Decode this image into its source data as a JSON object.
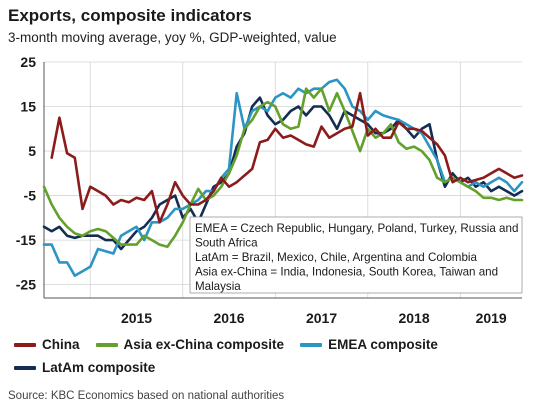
{
  "title": "Exports, composite indicators",
  "subtitle": "3-month moving average, yoy %, GDP-weighted, value",
  "source": "Source: KBC Economics based on national authorities",
  "annotation": [
    "EMEA = Czech Republic, Hungary, Poland, Turkey, Russia and",
    "South Africa",
    "LatAm = Brazil, Mexico, Chile, Argentina and Colombia",
    "Asia ex-China = India, Indonesia, South Korea, Taiwan and",
    "Malaysia"
  ],
  "chart_data": {
    "type": "line",
    "x_start": "2014-07",
    "x_end": "2019-09",
    "x_ticks": [
      "2015",
      "2016",
      "2017",
      "2018",
      "2019"
    ],
    "y_ticks": [
      "25",
      "15",
      "5",
      "-5",
      "-15",
      "-25"
    ],
    "ylim": [
      -28,
      25
    ],
    "grid": true,
    "series": [
      {
        "name": "China",
        "color": "#8c1c1c",
        "x": [
          "2014-08",
          "2014-09",
          "2014-10",
          "2014-11",
          "2014-12",
          "2015-01",
          "2015-02",
          "2015-03",
          "2015-04",
          "2015-05",
          "2015-06",
          "2015-07",
          "2015-08",
          "2015-09",
          "2015-10",
          "2015-11",
          "2015-12",
          "2016-01",
          "2016-02",
          "2016-03",
          "2016-04",
          "2016-05",
          "2016-06",
          "2016-07",
          "2016-08",
          "2016-09",
          "2016-10",
          "2016-11",
          "2016-12",
          "2017-01",
          "2017-02",
          "2017-03",
          "2017-04",
          "2017-05",
          "2017-06",
          "2017-07",
          "2017-08",
          "2017-09",
          "2017-10",
          "2017-11",
          "2017-12",
          "2018-01",
          "2018-02",
          "2018-03",
          "2018-04",
          "2018-05",
          "2018-06",
          "2018-07",
          "2018-08",
          "2018-09",
          "2018-10",
          "2018-11",
          "2018-12",
          "2019-01",
          "2019-02",
          "2019-03",
          "2019-04",
          "2019-05",
          "2019-06",
          "2019-07",
          "2019-08",
          "2019-09"
        ],
        "values": [
          3.5,
          12.5,
          4.5,
          3.5,
          -8,
          -3,
          -4,
          -5,
          -7,
          -6,
          -6.5,
          -5.5,
          -6,
          -4,
          -11,
          -7,
          -2,
          -5,
          -7,
          -7,
          -6,
          -4,
          -1,
          -3,
          -2,
          -0.5,
          1,
          7,
          7.5,
          10,
          8,
          8.5,
          7.5,
          6.5,
          6,
          10.5,
          8,
          9,
          10,
          10.5,
          18,
          8.5,
          10,
          8,
          8,
          11.5,
          10,
          10,
          9.5,
          8,
          6.5,
          4,
          -2,
          -1,
          -2,
          -1.5,
          -1,
          0,
          1,
          0,
          -1,
          -0.5
        ]
      },
      {
        "name": "Asia ex-China composite",
        "color": "#63a02c",
        "x": [
          "2014-07",
          "2014-08",
          "2014-09",
          "2014-10",
          "2014-11",
          "2014-12",
          "2015-01",
          "2015-02",
          "2015-03",
          "2015-04",
          "2015-05",
          "2015-06",
          "2015-07",
          "2015-08",
          "2015-09",
          "2015-10",
          "2015-11",
          "2015-12",
          "2016-01",
          "2016-02",
          "2016-03",
          "2016-04",
          "2016-05",
          "2016-06",
          "2016-07",
          "2016-08",
          "2016-09",
          "2016-10",
          "2016-11",
          "2016-12",
          "2017-01",
          "2017-02",
          "2017-03",
          "2017-04",
          "2017-05",
          "2017-06",
          "2017-07",
          "2017-08",
          "2017-09",
          "2017-10",
          "2017-11",
          "2017-12",
          "2018-01",
          "2018-02",
          "2018-03",
          "2018-04",
          "2018-05",
          "2018-06",
          "2018-07",
          "2018-08",
          "2018-09",
          "2018-10",
          "2018-11",
          "2018-12",
          "2019-01",
          "2019-02",
          "2019-03",
          "2019-04",
          "2019-05",
          "2019-06",
          "2019-07",
          "2019-08",
          "2019-09"
        ],
        "values": [
          -3,
          -7,
          -10,
          -12,
          -13.5,
          -14,
          -13,
          -12.5,
          -13,
          -14.5,
          -16,
          -16,
          -16,
          -14,
          -15,
          -16,
          -16.5,
          -14,
          -11,
          -7,
          -3.5,
          -6,
          -5,
          -3,
          0,
          4,
          10,
          12,
          15,
          16,
          15,
          11,
          10,
          10.5,
          19,
          17,
          19,
          14,
          18,
          14,
          9.5,
          5,
          10,
          8,
          9,
          11,
          7,
          5.5,
          6,
          5,
          3,
          -1,
          -2,
          -1,
          -2,
          -3,
          -4,
          -5.5,
          -5.5,
          -6,
          -5.5,
          -6,
          -6
        ]
      },
      {
        "name": "EMEA composite",
        "color": "#2b95c4",
        "x": [
          "2014-07",
          "2014-08",
          "2014-09",
          "2014-10",
          "2014-11",
          "2014-12",
          "2015-01",
          "2015-02",
          "2015-03",
          "2015-04",
          "2015-05",
          "2015-06",
          "2015-07",
          "2015-08",
          "2015-09",
          "2015-10",
          "2015-11",
          "2015-12",
          "2016-01",
          "2016-02",
          "2016-03",
          "2016-04",
          "2016-05",
          "2016-06",
          "2016-07",
          "2016-08",
          "2016-09",
          "2016-10",
          "2016-11",
          "2016-12",
          "2017-01",
          "2017-02",
          "2017-03",
          "2017-04",
          "2017-05",
          "2017-06",
          "2017-07",
          "2017-08",
          "2017-09",
          "2017-10",
          "2017-11",
          "2017-12",
          "2018-01",
          "2018-02",
          "2018-03",
          "2018-04",
          "2018-05",
          "2018-06",
          "2018-07",
          "2018-08",
          "2018-09",
          "2018-10",
          "2018-11",
          "2018-12",
          "2019-01",
          "2019-02",
          "2019-03",
          "2019-04",
          "2019-05",
          "2019-06",
          "2019-07",
          "2019-08",
          "2019-09"
        ],
        "values": [
          -16,
          -16,
          -20,
          -20,
          -23,
          -22,
          -21,
          -17,
          -17.5,
          -18,
          -14,
          -13,
          -12,
          -15,
          -11,
          -11,
          -10,
          -8,
          -8,
          -7,
          -6,
          -4,
          -4,
          -1,
          1,
          18,
          10,
          14,
          15,
          14,
          17,
          18,
          17,
          19,
          18,
          19,
          19,
          20.5,
          21,
          19,
          15,
          14,
          12,
          14,
          13,
          12.5,
          12,
          11,
          10,
          9,
          6,
          3,
          -2,
          -1,
          -2,
          -3,
          -2,
          -3,
          -2,
          -1,
          -2,
          -4,
          -2
        ]
      },
      {
        "name": "LatAm composite",
        "color": "#142d53",
        "x": [
          "2014-07",
          "2014-08",
          "2014-09",
          "2014-10",
          "2014-11",
          "2014-12",
          "2015-01",
          "2015-02",
          "2015-03",
          "2015-04",
          "2015-05",
          "2015-06",
          "2015-07",
          "2015-08",
          "2015-09",
          "2015-10",
          "2015-11",
          "2015-12",
          "2016-01",
          "2016-02",
          "2016-03",
          "2016-04",
          "2016-05",
          "2016-06",
          "2016-07",
          "2016-08",
          "2016-09",
          "2016-10",
          "2016-11",
          "2016-12",
          "2017-01",
          "2017-02",
          "2017-03",
          "2017-04",
          "2017-05",
          "2017-06",
          "2017-07",
          "2017-08",
          "2017-09",
          "2017-10",
          "2017-11",
          "2017-12",
          "2018-01",
          "2018-02",
          "2018-03",
          "2018-04",
          "2018-05",
          "2018-06",
          "2018-07",
          "2018-08",
          "2018-09",
          "2018-10",
          "2018-11",
          "2018-12",
          "2019-01",
          "2019-02",
          "2019-03",
          "2019-04",
          "2019-05",
          "2019-06",
          "2019-07",
          "2019-08",
          "2019-09"
        ],
        "values": [
          -12,
          -13,
          -12,
          -14,
          -14.5,
          -14,
          -14,
          -14,
          -15,
          -15,
          -17,
          -15,
          -13,
          -12,
          -10,
          -7,
          -6,
          -5,
          -10,
          -8,
          -11,
          -7,
          -3,
          -2,
          0,
          6,
          9,
          15,
          17,
          13,
          11,
          12,
          14,
          15,
          13,
          15,
          15,
          13,
          10,
          14,
          13,
          12,
          11,
          9,
          9,
          10,
          12,
          10,
          8,
          10,
          11,
          3,
          -3,
          0,
          -2,
          -1,
          -3,
          -2,
          -4,
          -3,
          -4,
          -5,
          -4
        ]
      }
    ]
  }
}
